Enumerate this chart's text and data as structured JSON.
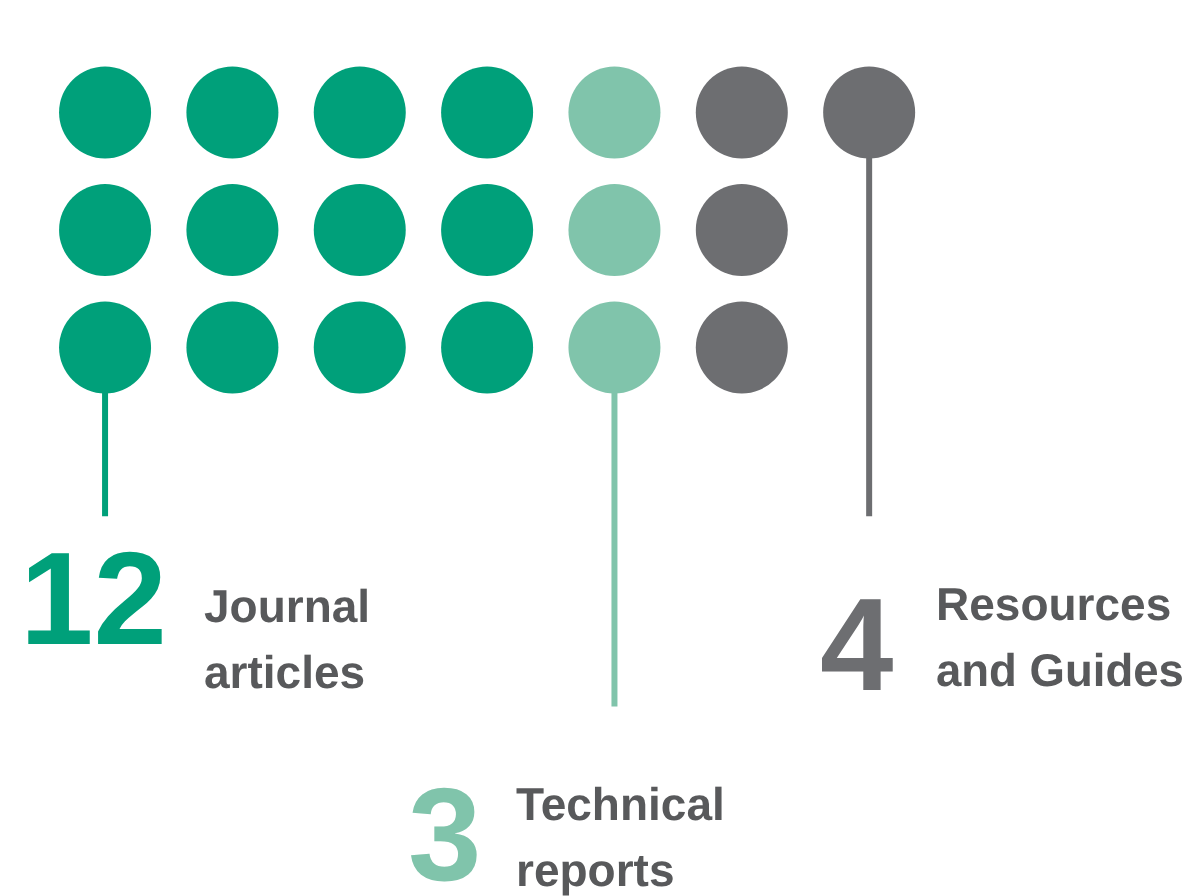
{
  "chart_data": {
    "type": "other",
    "categories": [
      "Journal articles",
      "Technical reports",
      "Resources and Guides"
    ],
    "values": [
      12,
      3,
      4
    ],
    "colors": [
      "#00a07a",
      "#80c4ab",
      "#6d6e71"
    ],
    "data_labels": true
  }
}
